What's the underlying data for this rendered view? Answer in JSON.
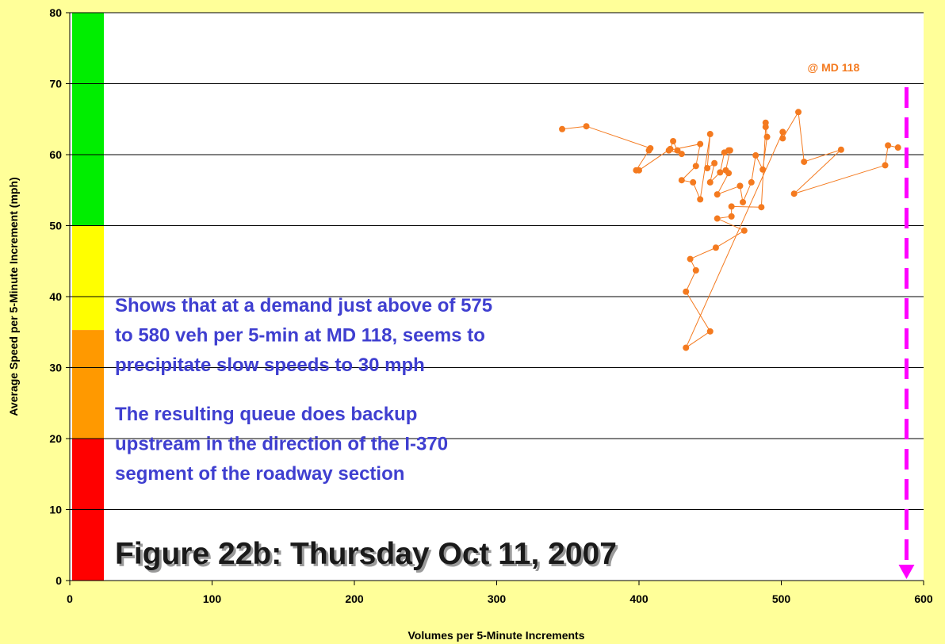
{
  "chart_data": {
    "type": "scatter",
    "title": "Figure 22b: Thursday Oct 11, 2007",
    "x_label": "Volumes per 5-Minute Increments",
    "y_label": "Average Speed per 5-Minute Increment (mph)",
    "xlim": [
      0,
      600
    ],
    "xticks": [
      0,
      100,
      200,
      300,
      400,
      500,
      600
    ],
    "ylim": [
      0,
      80
    ],
    "yticks": [
      0,
      10,
      20,
      30,
      40,
      50,
      60,
      70,
      80
    ],
    "grid": true,
    "bands": [
      {
        "from": 0,
        "to": 20,
        "color": "#ff0000"
      },
      {
        "from": 20,
        "to": 35.3,
        "color": "#ff9900"
      },
      {
        "from": 35.3,
        "to": 50,
        "color": "#ffff00"
      },
      {
        "from": 50,
        "to": 80,
        "color": "#00ee00"
      }
    ],
    "series": [
      {
        "color": "#f47a1f",
        "x": [
          346,
          363,
          408,
          407,
          398,
          400,
          422,
          424,
          427,
          430,
          421,
          443,
          440,
          430,
          438,
          443,
          450,
          448,
          453,
          450,
          457,
          460,
          463,
          464,
          461,
          463,
          455,
          471,
          473,
          479,
          482,
          487,
          490,
          489,
          489,
          486,
          465,
          465,
          455,
          474,
          454,
          436,
          440,
          433,
          450,
          433,
          501,
          501,
          512,
          516,
          542,
          509,
          573,
          575,
          582
        ],
        "y": [
          63.6,
          64.0,
          60.9,
          60.6,
          57.8,
          57.8,
          60.8,
          61.9,
          60.6,
          60.1,
          60.6,
          61.5,
          58.4,
          56.4,
          56.1,
          53.7,
          62.9,
          58.1,
          58.8,
          56.1,
          57.5,
          60.3,
          60.6,
          60.6,
          57.8,
          57.4,
          54.4,
          55.6,
          53.3,
          56.1,
          59.9,
          57.9,
          62.5,
          64.5,
          63.9,
          52.6,
          52.7,
          51.3,
          51.0,
          49.3,
          46.9,
          45.3,
          43.7,
          40.7,
          35.1,
          32.8,
          63.2,
          62.3,
          66.0,
          59.0,
          60.7,
          54.5,
          58.5,
          61.3,
          61.0
        ]
      }
    ],
    "vline": {
      "x": 588,
      "from": 69.5,
      "to": 0,
      "color": "#ff00ff",
      "label": "@ MD 118",
      "label_color": "#f47a1f"
    },
    "annotations": [
      [
        "Shows that at a demand just above of 575",
        "to 580 veh per 5-min at MD 118, seems to",
        "precipitate slow speeds to 30 mph"
      ],
      [
        "The resulting queue does backup",
        "upstream in the direction of the I-370",
        "segment of the roadway section"
      ]
    ]
  }
}
